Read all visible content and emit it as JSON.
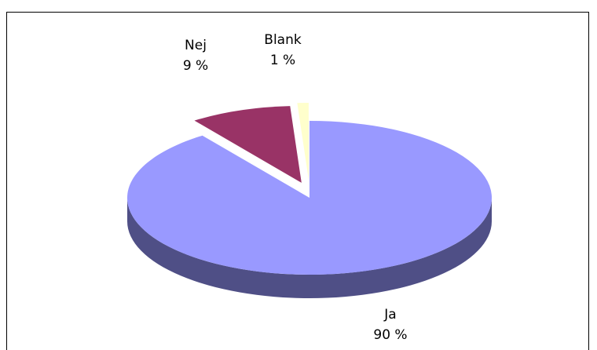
{
  "chart_data": {
    "type": "pie",
    "title": "",
    "labels": [
      "Ja",
      "Nej",
      "Blank"
    ],
    "values": [
      90,
      9,
      1
    ],
    "data_labels": [
      "90 %",
      "9 %",
      "1 %"
    ],
    "colors": {
      "Ja": {
        "top": "#9999ff",
        "side": "#4f4f86"
      },
      "Nej": {
        "top": "#993366",
        "side": "#5a1e3c"
      },
      "Blank": {
        "top": "#ffffcc",
        "side": "#8c8c6e"
      }
    },
    "exploded": [
      "Nej",
      "Blank"
    ],
    "start_angle": "12 o'clock, clockwise",
    "style": "3d"
  }
}
